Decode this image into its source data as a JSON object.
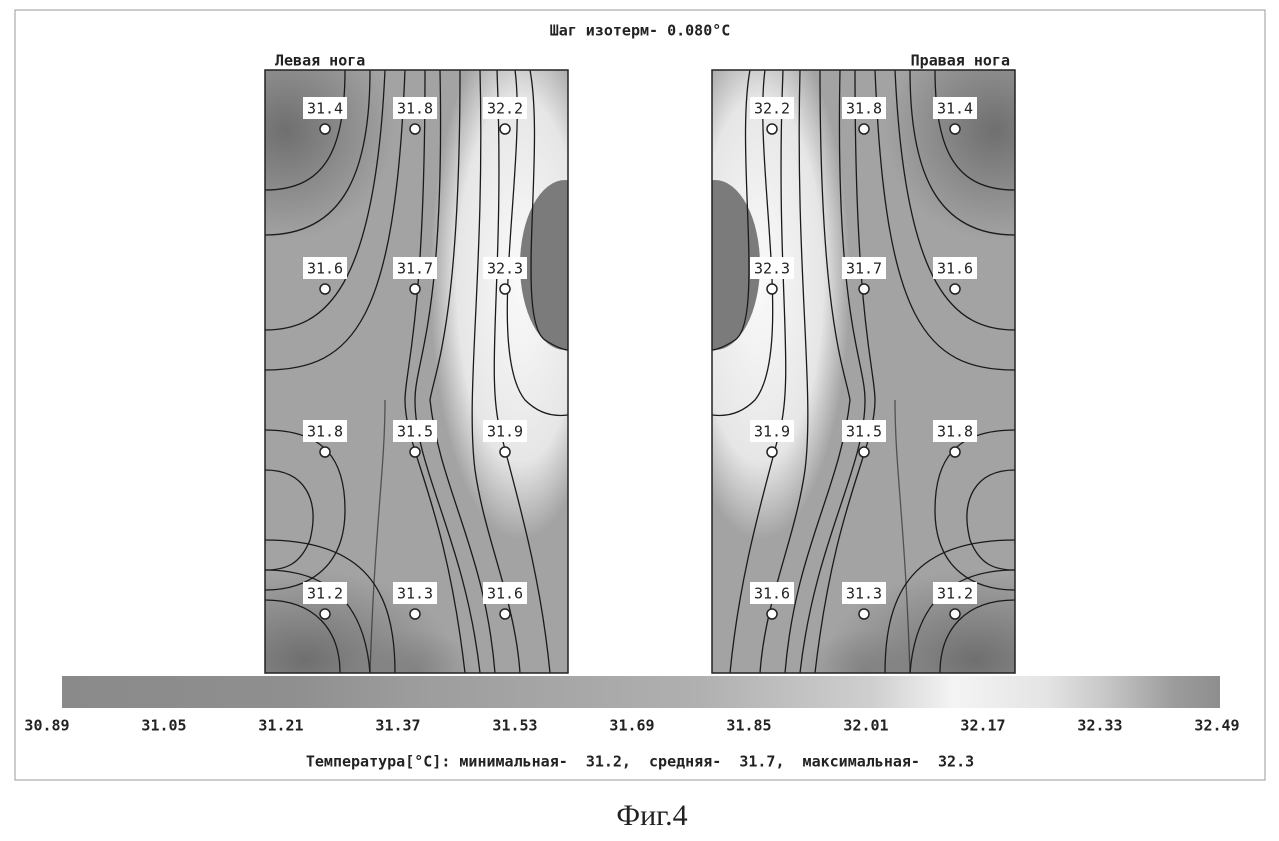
{
  "title": "Шаг изотерм- 0.080°C",
  "panels": [
    {
      "label": "Левая нога",
      "points": [
        [
          "31.4",
          "31.8",
          "32.2"
        ],
        [
          "31.6",
          "31.7",
          "32.3"
        ],
        [
          "31.8",
          "31.5",
          "31.9"
        ],
        [
          "31.2",
          "31.3",
          "31.6"
        ]
      ]
    },
    {
      "label": "Правая нога",
      "points": [
        [
          "32.2",
          "31.8",
          "31.4"
        ],
        [
          "32.3",
          "31.7",
          "31.6"
        ],
        [
          "31.9",
          "31.5",
          "31.8"
        ],
        [
          "31.6",
          "31.3",
          "31.2"
        ]
      ]
    }
  ],
  "scale": {
    "ticks": [
      "30.89",
      "31.05",
      "31.21",
      "31.37",
      "31.53",
      "31.69",
      "31.85",
      "32.01",
      "32.17",
      "32.33",
      "32.49"
    ]
  },
  "summary": "Температура[°C]: минимальная-  31.2,  средняя-  31.7,  максимальная-  32.3",
  "caption": "Фиг.4"
}
